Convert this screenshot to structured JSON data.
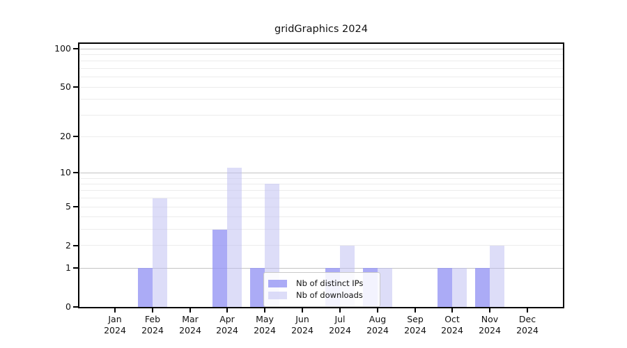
{
  "chart_data": {
    "type": "bar",
    "title": "gridGraphics 2024",
    "categories": [
      "Jan",
      "Feb",
      "Mar",
      "Apr",
      "May",
      "Jun",
      "Jul",
      "Aug",
      "Sep",
      "Oct",
      "Nov",
      "Dec"
    ],
    "x_tick_year": "2024",
    "series": [
      {
        "name": "Nb of distinct IPs",
        "key": "distinct-ips",
        "color": "rgba(150,150,244,0.8)",
        "color_on_white": "#ababf6",
        "values": [
          0,
          1,
          0,
          3,
          1,
          0,
          1,
          1,
          0,
          1,
          1,
          0
        ]
      },
      {
        "name": "Nb of downloads",
        "key": "downloads",
        "color": "rgba(187,187,241,0.5)",
        "color_on_white": "#ddddf8",
        "values": [
          0,
          6,
          0,
          11,
          8,
          0,
          2,
          1,
          0,
          1,
          2,
          0
        ]
      }
    ],
    "yaxis": {
      "scale": "log1p",
      "tick_labels": [
        "0",
        "1",
        "2",
        "5",
        "10",
        "20",
        "50",
        "100"
      ],
      "tick_values": [
        0,
        1,
        2,
        5,
        10,
        20,
        50,
        100
      ],
      "major_gridlines": [
        1,
        10,
        100
      ],
      "minor_gridlines": [
        2,
        3,
        4,
        5,
        6,
        7,
        8,
        9,
        20,
        30,
        40,
        50,
        60,
        70,
        80,
        90
      ],
      "ymax": 114
    },
    "legend_position": "inside-bottom-center",
    "grid": true,
    "colors": {
      "major_gridline": "#c3c3c3",
      "minor_gridline": "#ececec",
      "axis": "#000000",
      "legend_border": "#c9c9c9"
    }
  }
}
